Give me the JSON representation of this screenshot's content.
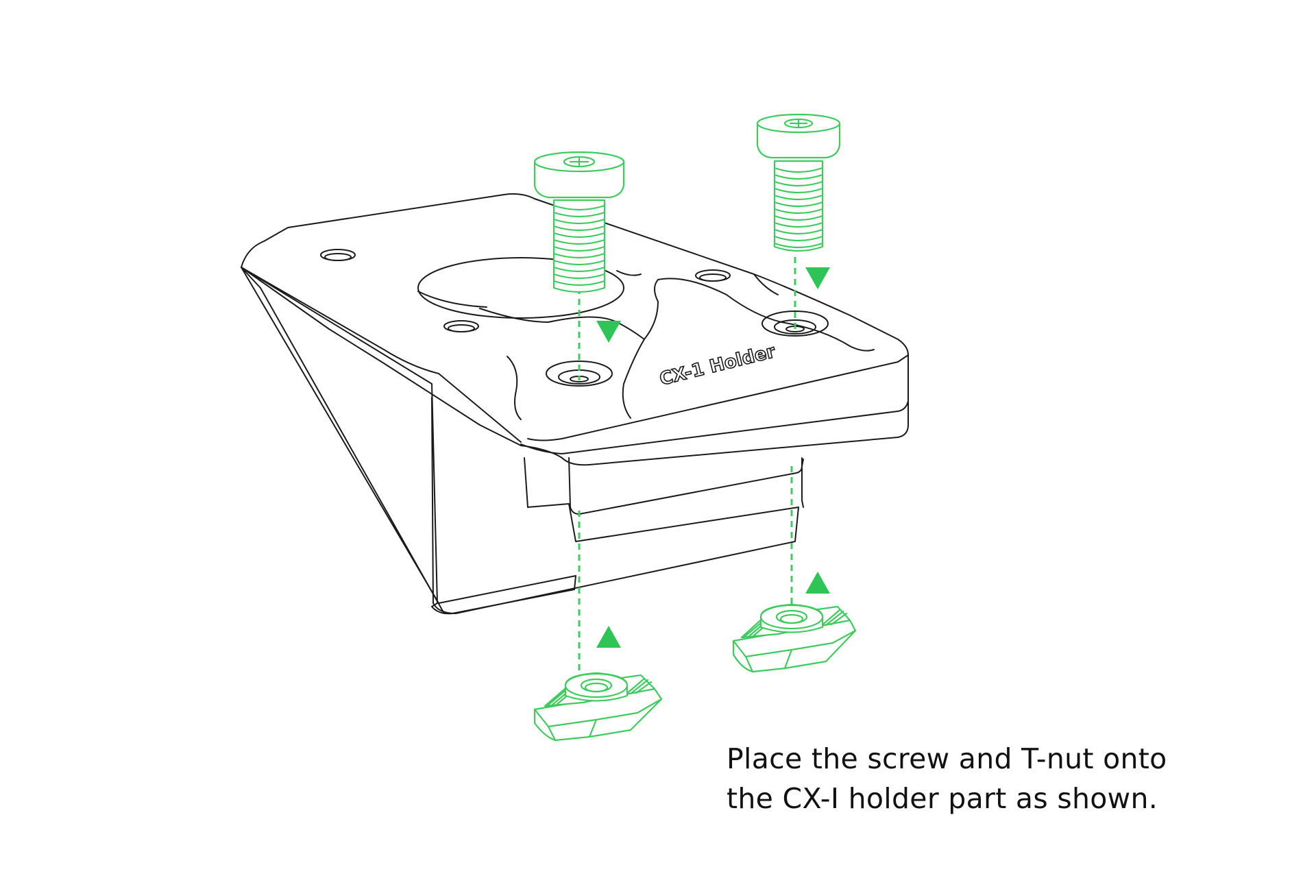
{
  "caption": {
    "line1": "Place the screw and T-nut onto",
    "line2": "the CX-I holder part as shown."
  },
  "part_engraving": "CX-1 Holder",
  "colors": {
    "accent": "#3ecb5e",
    "outline": "#1a1a1a",
    "background": "#ffffff",
    "text": "#111111"
  }
}
